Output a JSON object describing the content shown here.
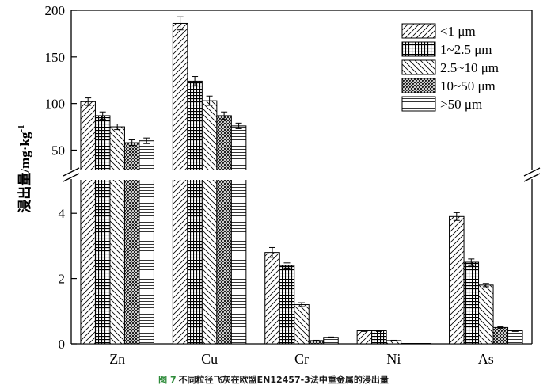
{
  "chart_data": {
    "type": "bar",
    "ylabel": "浸出量/mg·kg",
    "ylabel_sup": "-1",
    "categories": [
      "Zn",
      "Cu",
      "Cr",
      "Ni",
      "As"
    ],
    "series": [
      {
        "name": "<1 μm",
        "values": [
          102,
          186,
          2.8,
          0.4,
          3.9
        ],
        "errors": [
          4,
          7,
          0.15,
          0.02,
          0.12
        ]
      },
      {
        "name": "1~2.5 μm",
        "values": [
          87,
          124,
          2.4,
          0.4,
          2.5
        ],
        "errors": [
          4,
          5,
          0.08,
          0.02,
          0.1
        ]
      },
      {
        "name": "2.5~10 μm",
        "values": [
          75,
          103,
          1.2,
          0.1,
          1.8
        ],
        "errors": [
          3,
          5,
          0.06,
          0.01,
          0.05
        ]
      },
      {
        "name": "10~50 μm",
        "values": [
          58,
          87,
          0.1,
          0.0,
          0.5
        ],
        "errors": [
          3,
          4,
          0.01,
          0.0,
          0.02
        ]
      },
      {
        "name": ">50 μm",
        "values": [
          60,
          76,
          0.2,
          0.0,
          0.4
        ],
        "errors": [
          3,
          3,
          0.01,
          0.0,
          0.02
        ]
      }
    ],
    "axis_break": {
      "lower_range": [
        0,
        5
      ],
      "upper_range": [
        30,
        200
      ]
    },
    "lower_ticks": [
      0,
      2,
      4
    ],
    "upper_ticks": [
      50,
      100,
      150,
      200
    ],
    "grid": false,
    "legend_position": "top-right"
  },
  "caption": {
    "figure_label": "图 7",
    "text": "不同粒径飞灰在欧盟EN12457-3法中重金属的浸出量"
  }
}
